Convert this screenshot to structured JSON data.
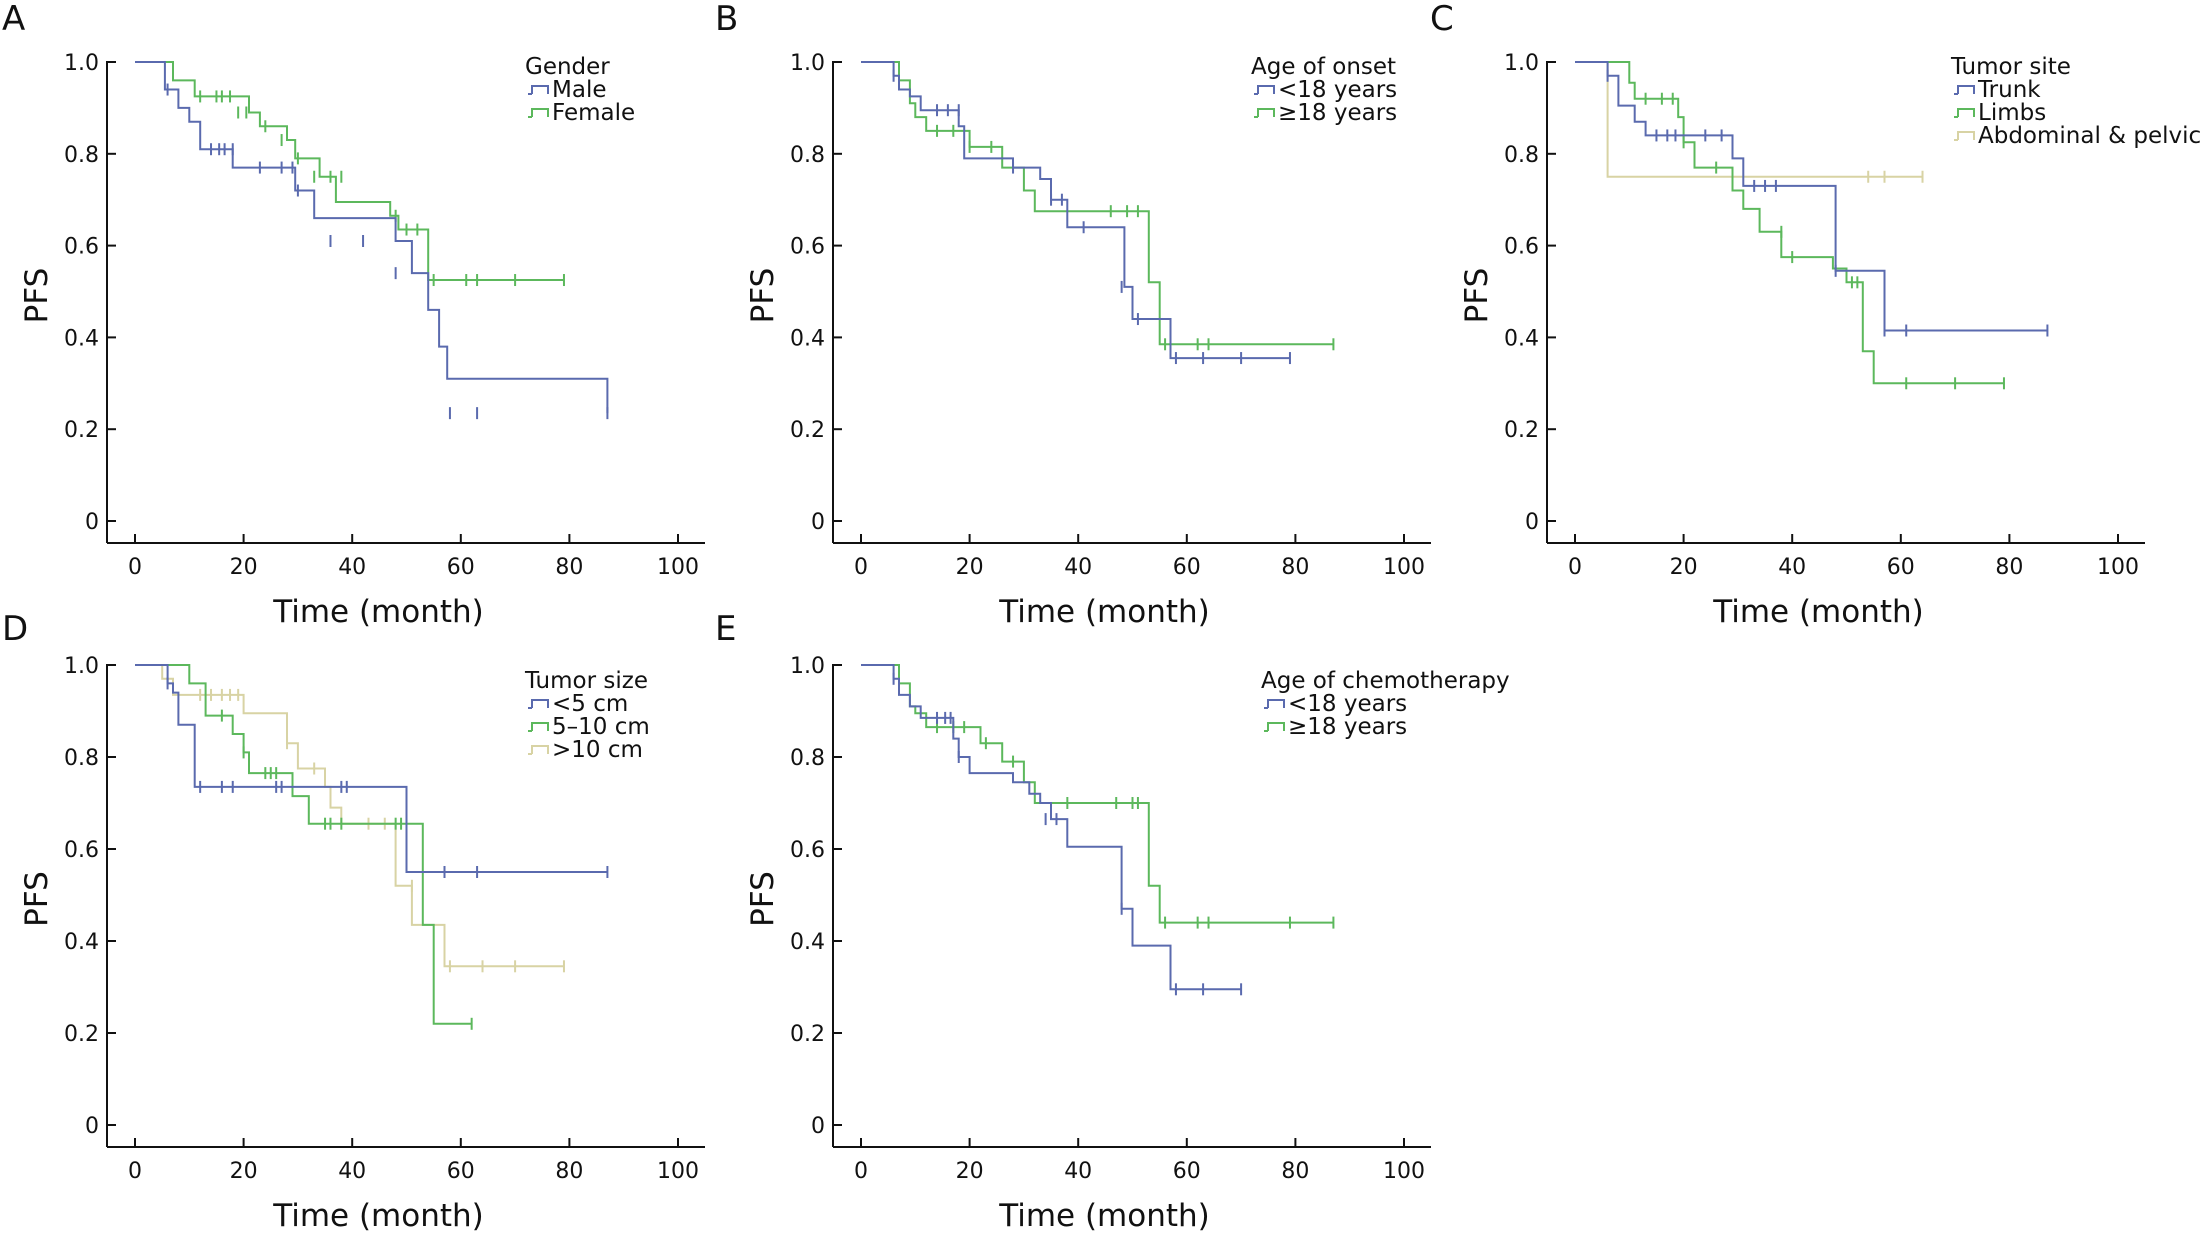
{
  "figure": {
    "colors": {
      "blue": "#5a6aae",
      "green": "#5cb85c",
      "tan": "#d8d3a4",
      "axis": "#111111"
    }
  },
  "chart_data": [
    {
      "type": "line",
      "subtype": "kaplan-meier step",
      "panel": "A",
      "xlabel": "Time (month)",
      "ylabel": "PFS",
      "xlim": [
        0,
        100
      ],
      "ylim": [
        0,
        1
      ],
      "xticks": [
        "0",
        "20",
        "40",
        "60",
        "80",
        "100"
      ],
      "yticks": [
        "0",
        "0.2",
        "0.4",
        "0.6",
        "0.8",
        "1.0"
      ],
      "legend_title": "Gender",
      "legend_position": "top-right",
      "series": [
        {
          "name": "Male",
          "color": "#5a6aae",
          "x": [
            0,
            5.5,
            8,
            10,
            12,
            18,
            29.5,
            33,
            48,
            51,
            54,
            56,
            57.5,
            87
          ],
          "y": [
            1.0,
            0.94,
            0.9,
            0.87,
            0.81,
            0.77,
            0.72,
            0.66,
            0.61,
            0.54,
            0.46,
            0.38,
            0.31,
            0.235
          ],
          "censored": [
            [
              6,
              0.94
            ],
            [
              14,
              0.81
            ],
            [
              15.5,
              0.81
            ],
            [
              16.5,
              0.81
            ],
            [
              18,
              0.81
            ],
            [
              23,
              0.77
            ],
            [
              27,
              0.77
            ],
            [
              29,
              0.77
            ],
            [
              30,
              0.72
            ],
            [
              36,
              0.61
            ],
            [
              42,
              0.61
            ],
            [
              48,
              0.54
            ],
            [
              58,
              0.235
            ],
            [
              63,
              0.235
            ],
            [
              87,
              0.235
            ]
          ]
        },
        {
          "name": "Female",
          "color": "#5cb85c",
          "x": [
            0,
            7,
            11,
            21,
            23,
            28,
            29.5,
            34,
            37,
            47,
            48.5,
            54,
            79
          ],
          "y": [
            1.0,
            0.96,
            0.925,
            0.89,
            0.86,
            0.83,
            0.79,
            0.75,
            0.695,
            0.665,
            0.635,
            0.525,
            0.525
          ],
          "censored": [
            [
              12,
              0.925
            ],
            [
              15,
              0.925
            ],
            [
              16,
              0.925
            ],
            [
              17.5,
              0.925
            ],
            [
              19,
              0.89
            ],
            [
              20.5,
              0.89
            ],
            [
              24,
              0.86
            ],
            [
              27,
              0.83
            ],
            [
              30,
              0.79
            ],
            [
              33,
              0.75
            ],
            [
              36,
              0.75
            ],
            [
              38,
              0.75
            ],
            [
              48,
              0.665
            ],
            [
              50,
              0.635
            ],
            [
              52,
              0.635
            ],
            [
              55,
              0.525
            ],
            [
              61,
              0.525
            ],
            [
              63,
              0.525
            ],
            [
              70,
              0.525
            ],
            [
              79,
              0.525
            ]
          ]
        }
      ]
    },
    {
      "type": "line",
      "subtype": "kaplan-meier step",
      "panel": "B",
      "xlabel": "Time (month)",
      "ylabel": "PFS",
      "xlim": [
        0,
        100
      ],
      "ylim": [
        0,
        1
      ],
      "xticks": [
        "0",
        "20",
        "40",
        "60",
        "80",
        "100"
      ],
      "yticks": [
        "0",
        "0.2",
        "0.4",
        "0.6",
        "0.8",
        "1.0"
      ],
      "legend_title": "Age of onset",
      "legend_position": "top-right",
      "series": [
        {
          "name": "<18 years",
          "color": "#5a6aae",
          "x": [
            0,
            6,
            7,
            9,
            11,
            18,
            19,
            27,
            28,
            33,
            35,
            38,
            47,
            48.5,
            50,
            57,
            79
          ],
          "y": [
            1.0,
            0.97,
            0.94,
            0.925,
            0.895,
            0.86,
            0.79,
            0.79,
            0.77,
            0.745,
            0.7,
            0.64,
            0.64,
            0.51,
            0.44,
            0.355,
            0.355
          ],
          "censored": [
            [
              6,
              0.97
            ],
            [
              14,
              0.895
            ],
            [
              16,
              0.895
            ],
            [
              18,
              0.895
            ],
            [
              28,
              0.77
            ],
            [
              35,
              0.7
            ],
            [
              37,
              0.7
            ],
            [
              41,
              0.64
            ],
            [
              48,
              0.51
            ],
            [
              51,
              0.44
            ],
            [
              58,
              0.355
            ],
            [
              63,
              0.355
            ],
            [
              70,
              0.355
            ],
            [
              79,
              0.355
            ]
          ]
        },
        {
          "name": "≥18 years",
          "color": "#5cb85c",
          "x": [
            0,
            7,
            9,
            10,
            12,
            20,
            26,
            30,
            32,
            53,
            55,
            87
          ],
          "y": [
            1.0,
            0.96,
            0.91,
            0.88,
            0.85,
            0.815,
            0.77,
            0.72,
            0.675,
            0.52,
            0.385,
            0.385
          ],
          "censored": [
            [
              14,
              0.85
            ],
            [
              17,
              0.85
            ],
            [
              20,
              0.815
            ],
            [
              24,
              0.815
            ],
            [
              46,
              0.675
            ],
            [
              49,
              0.675
            ],
            [
              51,
              0.675
            ],
            [
              56,
              0.385
            ],
            [
              62,
              0.385
            ],
            [
              64,
              0.385
            ],
            [
              87,
              0.385
            ]
          ]
        }
      ]
    },
    {
      "type": "line",
      "subtype": "kaplan-meier step",
      "panel": "C",
      "xlabel": "Time (month)",
      "ylabel": "PFS",
      "xlim": [
        0,
        100
      ],
      "ylim": [
        0,
        1
      ],
      "xticks": [
        "0",
        "20",
        "40",
        "60",
        "80",
        "100"
      ],
      "yticks": [
        "0",
        "0.2",
        "0.4",
        "0.6",
        "0.8",
        "1.0"
      ],
      "legend_title": "Tumor site",
      "legend_position": "top-right",
      "series": [
        {
          "name": "Trunk",
          "color": "#5a6aae",
          "x": [
            0,
            6,
            8,
            11,
            13,
            29,
            31,
            48,
            57,
            87
          ],
          "y": [
            1.0,
            0.97,
            0.905,
            0.87,
            0.84,
            0.79,
            0.73,
            0.545,
            0.415,
            0.415
          ],
          "censored": [
            [
              6,
              0.97
            ],
            [
              15,
              0.84
            ],
            [
              17,
              0.84
            ],
            [
              18.5,
              0.84
            ],
            [
              24,
              0.84
            ],
            [
              27,
              0.84
            ],
            [
              33,
              0.73
            ],
            [
              35,
              0.73
            ],
            [
              37,
              0.73
            ],
            [
              48,
              0.545
            ],
            [
              57,
              0.415
            ],
            [
              61,
              0.415
            ],
            [
              87,
              0.415
            ]
          ]
        },
        {
          "name": "Limbs",
          "color": "#5cb85c",
          "x": [
            0,
            10,
            11,
            19,
            20,
            22,
            29,
            31,
            34,
            38,
            47.5,
            50,
            53,
            55,
            79
          ],
          "y": [
            1.0,
            0.955,
            0.92,
            0.88,
            0.825,
            0.77,
            0.72,
            0.68,
            0.63,
            0.575,
            0.55,
            0.52,
            0.37,
            0.3,
            0.3
          ],
          "censored": [
            [
              13,
              0.92
            ],
            [
              16,
              0.92
            ],
            [
              18,
              0.92
            ],
            [
              20,
              0.825
            ],
            [
              26,
              0.77
            ],
            [
              38,
              0.63
            ],
            [
              40,
              0.575
            ],
            [
              51,
              0.52
            ],
            [
              52,
              0.52
            ],
            [
              61,
              0.3
            ],
            [
              70,
              0.3
            ],
            [
              79,
              0.3
            ]
          ]
        },
        {
          "name": "Abdominal & pelvic",
          "color": "#d8d3a4",
          "x": [
            0,
            6,
            64
          ],
          "y": [
            1.0,
            0.75,
            0.75
          ],
          "censored": [
            [
              54,
              0.75
            ],
            [
              57,
              0.75
            ],
            [
              64,
              0.75
            ]
          ]
        }
      ]
    },
    {
      "type": "line",
      "subtype": "kaplan-meier step",
      "panel": "D",
      "xlabel": "Time (month)",
      "ylabel": "PFS",
      "xlim": [
        0,
        100
      ],
      "ylim": [
        0,
        1
      ],
      "xticks": [
        "0",
        "20",
        "40",
        "60",
        "80",
        "100"
      ],
      "yticks": [
        "0",
        "0.2",
        "0.4",
        "0.6",
        "0.8",
        "1.0"
      ],
      "legend_title": "Tumor size",
      "legend_position": "top-right",
      "series": [
        {
          "name": "<5 cm",
          "color": "#5a6aae",
          "x": [
            0,
            6,
            7,
            8,
            11,
            50,
            87
          ],
          "y": [
            1.0,
            0.96,
            0.94,
            0.87,
            0.735,
            0.55,
            0.55
          ],
          "censored": [
            [
              6,
              0.96
            ],
            [
              12,
              0.735
            ],
            [
              16,
              0.735
            ],
            [
              18,
              0.735
            ],
            [
              26,
              0.735
            ],
            [
              27,
              0.735
            ],
            [
              38,
              0.735
            ],
            [
              39,
              0.735
            ],
            [
              57,
              0.55
            ],
            [
              63,
              0.55
            ],
            [
              87,
              0.55
            ]
          ]
        },
        {
          "name": "5–10 cm",
          "color": "#5cb85c",
          "x": [
            0,
            10,
            13,
            18,
            20,
            21,
            29,
            32,
            53,
            55,
            62
          ],
          "y": [
            1.0,
            0.96,
            0.89,
            0.85,
            0.81,
            0.765,
            0.715,
            0.655,
            0.435,
            0.22,
            0.22
          ],
          "censored": [
            [
              16,
              0.89
            ],
            [
              20,
              0.81
            ],
            [
              24,
              0.765
            ],
            [
              25,
              0.765
            ],
            [
              26,
              0.765
            ],
            [
              35,
              0.655
            ],
            [
              36,
              0.655
            ],
            [
              38,
              0.655
            ],
            [
              48,
              0.655
            ],
            [
              49,
              0.655
            ],
            [
              62,
              0.22
            ]
          ]
        },
        {
          "name": ">10 cm",
          "color": "#d8d3a4",
          "x": [
            0,
            5,
            7,
            20,
            28,
            30,
            35,
            36,
            38,
            48,
            51,
            57,
            79
          ],
          "y": [
            1.0,
            0.97,
            0.935,
            0.895,
            0.83,
            0.775,
            0.735,
            0.69,
            0.655,
            0.52,
            0.435,
            0.345,
            0.345
          ],
          "censored": [
            [
              12,
              0.935
            ],
            [
              14,
              0.935
            ],
            [
              16,
              0.935
            ],
            [
              17.5,
              0.935
            ],
            [
              19,
              0.935
            ],
            [
              28,
              0.83
            ],
            [
              33,
              0.775
            ],
            [
              43,
              0.655
            ],
            [
              46,
              0.655
            ],
            [
              51,
              0.52
            ],
            [
              58,
              0.345
            ],
            [
              64,
              0.345
            ],
            [
              70,
              0.345
            ],
            [
              79,
              0.345
            ]
          ]
        }
      ]
    },
    {
      "type": "line",
      "subtype": "kaplan-meier step",
      "panel": "E",
      "xlabel": "Time (month)",
      "ylabel": "PFS",
      "xlim": [
        0,
        100
      ],
      "ylim": [
        0,
        1
      ],
      "xticks": [
        "0",
        "20",
        "40",
        "60",
        "80",
        "100"
      ],
      "yticks": [
        "0",
        "0.2",
        "0.4",
        "0.6",
        "0.8",
        "1.0"
      ],
      "legend_title": "Age of chemotherapy",
      "legend_position": "top-right",
      "series": [
        {
          "name": "<18 years",
          "color": "#5a6aae",
          "x": [
            0,
            6,
            7,
            9,
            11,
            17,
            18,
            20,
            27,
            28,
            31,
            33,
            35,
            38,
            48,
            50,
            57,
            70
          ],
          "y": [
            1.0,
            0.97,
            0.935,
            0.91,
            0.885,
            0.84,
            0.8,
            0.765,
            0.765,
            0.745,
            0.72,
            0.7,
            0.665,
            0.605,
            0.47,
            0.39,
            0.295,
            0.295
          ],
          "censored": [
            [
              6,
              0.97
            ],
            [
              14,
              0.885
            ],
            [
              15.5,
              0.885
            ],
            [
              16.5,
              0.885
            ],
            [
              18,
              0.8
            ],
            [
              34,
              0.665
            ],
            [
              36,
              0.665
            ],
            [
              48,
              0.47
            ],
            [
              58,
              0.295
            ],
            [
              63,
              0.295
            ],
            [
              70,
              0.295
            ]
          ]
        },
        {
          "name": "≥18 years",
          "color": "#5cb85c",
          "x": [
            0,
            7,
            9,
            10,
            12,
            22,
            26,
            30,
            32,
            53,
            55,
            87
          ],
          "y": [
            1.0,
            0.96,
            0.91,
            0.895,
            0.865,
            0.83,
            0.79,
            0.745,
            0.7,
            0.52,
            0.44,
            0.44
          ],
          "censored": [
            [
              14,
              0.865
            ],
            [
              17,
              0.865
            ],
            [
              19,
              0.865
            ],
            [
              23,
              0.83
            ],
            [
              28,
              0.79
            ],
            [
              38,
              0.7
            ],
            [
              47,
              0.7
            ],
            [
              50,
              0.7
            ],
            [
              51,
              0.7
            ],
            [
              56,
              0.44
            ],
            [
              62,
              0.44
            ],
            [
              64,
              0.44
            ],
            [
              79,
              0.44
            ],
            [
              87,
              0.44
            ]
          ]
        }
      ]
    }
  ]
}
